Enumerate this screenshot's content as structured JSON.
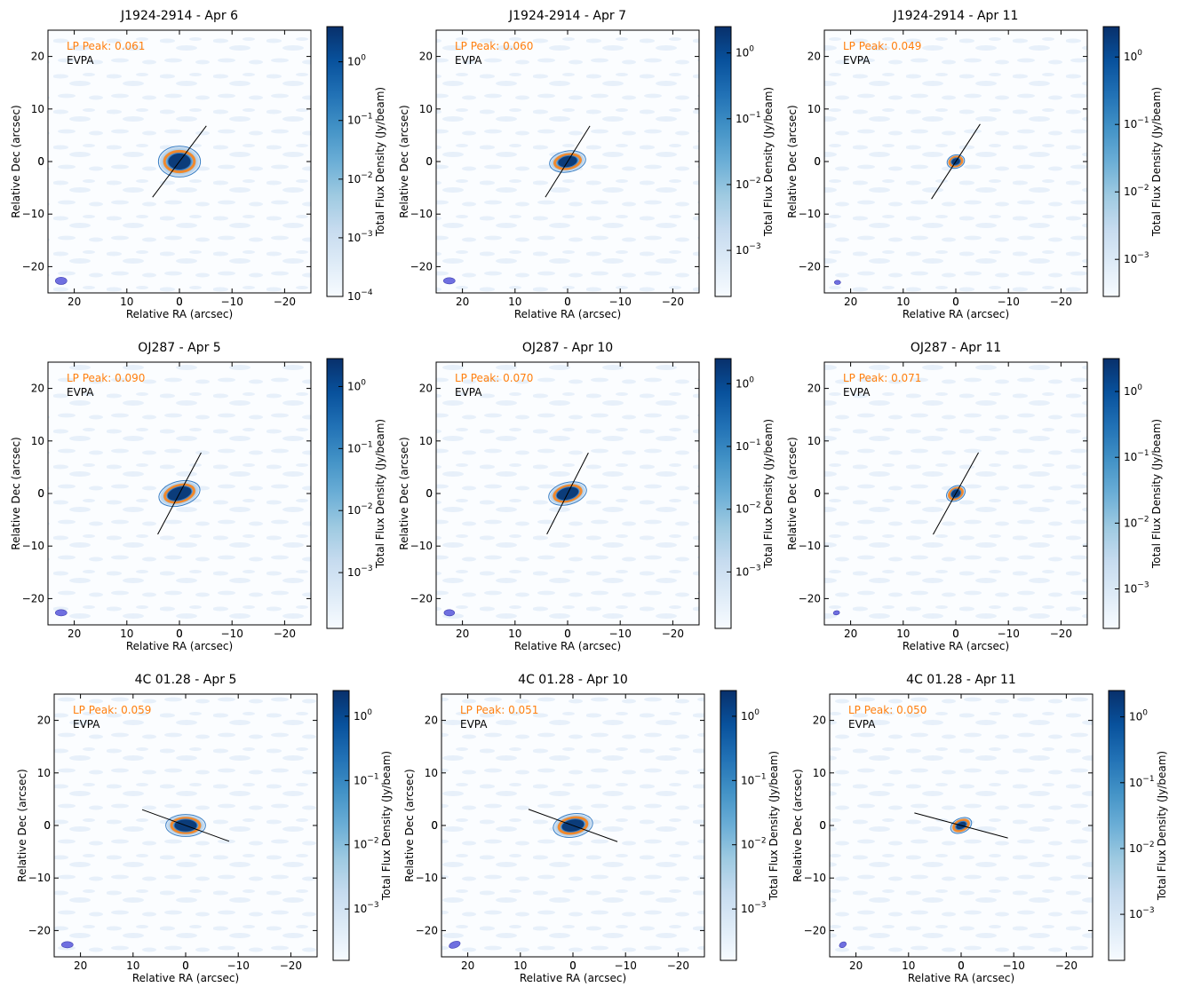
{
  "common": {
    "xlabel": "Relative RA (arcsec)",
    "ylabel": "Relative Dec (arcsec)",
    "cbar_label": "Total Flux Density (Jy/beam)",
    "lp_color": "#ff7f0e",
    "contour_color": "#3b7fc4",
    "beam_color": "#6f6fe0",
    "evpa_label": "EVPA",
    "xlim": [
      25,
      -25
    ],
    "ylim": [
      -25,
      25
    ],
    "xticks": [
      20,
      10,
      0,
      -10,
      -20
    ],
    "yticks": [
      20,
      10,
      0,
      -10,
      -20
    ],
    "cmap": "Blues",
    "cbar_scale": "log"
  },
  "chart_data": [
    {
      "type": "heatmap",
      "title": "J1924-2914 - Apr 6",
      "lp_text": "LP Peak: 0.061",
      "evpa_deg": 53,
      "evpa_len": 8.5,
      "cbar_ticks": [
        "10^0",
        "10^-1",
        "10^-2",
        "10^-3",
        "10^-4"
      ],
      "cbar_range": [
        -4,
        0.6
      ],
      "beam": {
        "x": 22.5,
        "y": -22.7,
        "a": 1.1,
        "b": 0.7,
        "pa": 90
      },
      "core": {
        "a": 3.8,
        "b": 2.8,
        "rot": 0
      },
      "contour2": {
        "a": 2.2,
        "b": 1.6
      }
    },
    {
      "type": "heatmap",
      "title": "J1924-2914 - Apr 7",
      "lp_text": "LP Peak: 0.060",
      "evpa_deg": 58,
      "evpa_len": 8.0,
      "cbar_ticks": [
        "10^0",
        "10^-1",
        "10^-2",
        "10^-3"
      ],
      "cbar_range": [
        -3.7,
        0.4
      ],
      "beam": {
        "x": 22.5,
        "y": -22.7,
        "a": 1.1,
        "b": 0.6,
        "pa": 90
      },
      "core": {
        "a": 3.3,
        "b": 1.9,
        "rot": -10
      },
      "contour2": {
        "a": 1.9,
        "b": 1.1
      }
    },
    {
      "type": "heatmap",
      "title": "J1924-2914 - Apr 11",
      "lp_text": "LP Peak: 0.049",
      "evpa_deg": 57,
      "evpa_len": 8.5,
      "cbar_ticks": [
        "10^0",
        "10^-1",
        "10^-2",
        "10^-3"
      ],
      "cbar_range": [
        -3.55,
        0.45
      ],
      "beam": {
        "x": 22.5,
        "y": -23.0,
        "a": 0.6,
        "b": 0.4,
        "pa": 90
      },
      "core": {
        "a": 1.6,
        "b": 1.2,
        "rot": -15
      },
      "contour2": {
        "a": 0.9,
        "b": 0.7
      }
    },
    {
      "type": "heatmap",
      "title": "OJ287 - Apr 5",
      "lp_text": "LP Peak: 0.090",
      "evpa_deg": 62,
      "evpa_len": 8.8,
      "cbar_ticks": [
        "10^0",
        "10^-1",
        "10^-2",
        "10^-3"
      ],
      "cbar_range": [
        -3.9,
        0.45
      ],
      "beam": {
        "x": 22.5,
        "y": -22.7,
        "a": 1.1,
        "b": 0.6,
        "pa": 90
      },
      "core": {
        "a": 3.8,
        "b": 2.2,
        "rot": -15
      },
      "contour2": {
        "a": 2.4,
        "b": 1.3
      }
    },
    {
      "type": "heatmap",
      "title": "OJ287 - Apr 10",
      "lp_text": "LP Peak: 0.070",
      "evpa_deg": 63,
      "evpa_len": 8.7,
      "cbar_ticks": [
        "10^0",
        "10^-1",
        "10^-2",
        "10^-3"
      ],
      "cbar_range": [
        -3.9,
        0.4
      ],
      "beam": {
        "x": 22.5,
        "y": -22.7,
        "a": 1.0,
        "b": 0.6,
        "pa": 90
      },
      "core": {
        "a": 3.5,
        "b": 2.0,
        "rot": -15
      },
      "contour2": {
        "a": 2.2,
        "b": 1.2
      }
    },
    {
      "type": "heatmap",
      "title": "OJ287 - Apr 11",
      "lp_text": "LP Peak: 0.071",
      "evpa_deg": 61,
      "evpa_len": 8.9,
      "cbar_ticks": [
        "10^0",
        "10^-1",
        "10^-2",
        "10^-3"
      ],
      "cbar_range": [
        -3.6,
        0.5
      ],
      "beam": {
        "x": 22.7,
        "y": -22.7,
        "a": 0.6,
        "b": 0.4,
        "pa": 100
      },
      "core": {
        "a": 1.8,
        "b": 1.3,
        "rot": -30
      },
      "contour2": {
        "a": 1.0,
        "b": 0.8
      }
    },
    {
      "type": "heatmap",
      "title": "4C 01.28 - Apr 5",
      "lp_text": "LP Peak: 0.059",
      "evpa_deg": -20,
      "evpa_len": 8.8,
      "cbar_ticks": [
        "10^0",
        "10^-1",
        "10^-2",
        "10^-3"
      ],
      "cbar_range": [
        -3.8,
        0.4
      ],
      "beam": {
        "x": 22.5,
        "y": -22.7,
        "a": 1.1,
        "b": 0.6,
        "pa": 90
      },
      "core": {
        "a": 3.6,
        "b": 2.0,
        "rot": 0
      },
      "contour2": {
        "a": 2.2,
        "b": 1.2
      }
    },
    {
      "type": "heatmap",
      "title": "4C 01.28 - Apr 10",
      "lp_text": "LP Peak: 0.051",
      "evpa_deg": -20,
      "evpa_len": 9.0,
      "cbar_ticks": [
        "10^0",
        "10^-1",
        "10^-2",
        "10^-3"
      ],
      "cbar_range": [
        -3.8,
        0.4
      ],
      "beam": {
        "x": 22.5,
        "y": -22.7,
        "a": 1.1,
        "b": 0.6,
        "pa": 110
      },
      "core": {
        "a": 3.6,
        "b": 2.1,
        "rot": -10
      },
      "contour2": {
        "a": 2.2,
        "b": 1.2
      }
    },
    {
      "type": "heatmap",
      "title": "4C 01.28 - Apr 11",
      "lp_text": "LP Peak: 0.050",
      "evpa_deg": -15,
      "evpa_len": 9.2,
      "cbar_ticks": [
        "10^0",
        "10^-1",
        "10^-2",
        "10^-3"
      ],
      "cbar_range": [
        -3.7,
        0.4
      ],
      "beam": {
        "x": 22.5,
        "y": -22.7,
        "a": 0.7,
        "b": 0.5,
        "pa": 120
      },
      "core": {
        "a": 2.0,
        "b": 1.3,
        "rot": -25
      },
      "contour2": {
        "a": 1.1,
        "b": 0.7
      }
    }
  ]
}
